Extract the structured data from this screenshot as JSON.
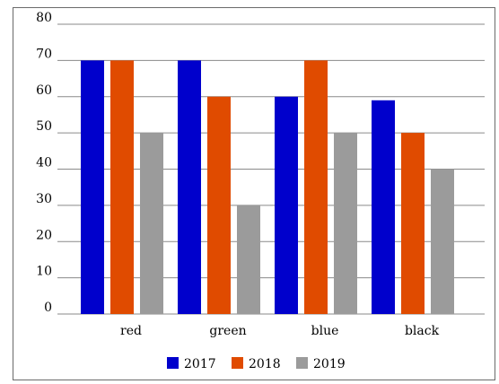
{
  "chart_data": {
    "type": "bar",
    "title": "",
    "xlabel": "",
    "ylabel": "",
    "categories": [
      "red",
      "green",
      "blue",
      "black"
    ],
    "series": [
      {
        "name": "2017",
        "color": "#0000cc",
        "values": [
          70,
          70,
          60,
          59
        ]
      },
      {
        "name": "2018",
        "color": "#e04b00",
        "values": [
          70,
          60,
          70,
          50
        ]
      },
      {
        "name": "2019",
        "color": "#9b9b9b",
        "values": [
          50,
          30,
          50,
          40
        ]
      }
    ],
    "ylim": [
      0,
      80
    ],
    "yticks": [
      "0",
      "10",
      "20",
      "30",
      "40",
      "50",
      "60",
      "70",
      "80"
    ],
    "grid": true,
    "legend_position": "bottom-center"
  }
}
